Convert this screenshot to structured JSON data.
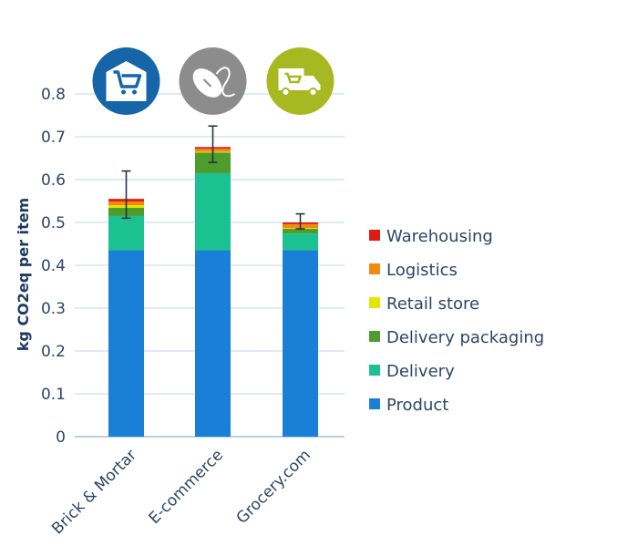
{
  "chart_data": {
    "type": "bar",
    "stacked": true,
    "title": "",
    "xlabel": "",
    "ylabel": "kg CO2eq per item",
    "ylim": [
      0,
      0.8
    ],
    "yticks": [
      "0",
      "0.1",
      "0.2",
      "0.3",
      "0.4",
      "0.5",
      "0.6",
      "0.7",
      "0.8"
    ],
    "grid": true,
    "legend_position": "right",
    "categories": [
      "Brick & Mortar",
      "E-commerce",
      "Grocery.com"
    ],
    "category_icons": [
      "store-cart-icon",
      "computer-mouse-icon",
      "delivery-truck-icon"
    ],
    "icon_colors": [
      "#1565a8",
      "#8c8c8c",
      "#a8b820"
    ],
    "series": [
      {
        "name": "Product",
        "color": "#1a7fd6",
        "values": [
          0.435,
          0.435,
          0.435
        ]
      },
      {
        "name": "Delivery",
        "color": "#1cc191",
        "values": [
          0.08,
          0.18,
          0.039
        ]
      },
      {
        "name": "Delivery packaging",
        "color": "#4e9c2c",
        "values": [
          0.019,
          0.048,
          0.011
        ]
      },
      {
        "name": "Retail store",
        "color": "#e2e600",
        "values": [
          0.006,
          0.002,
          0.002
        ]
      },
      {
        "name": "Logistics",
        "color": "#f08a10",
        "values": [
          0.009,
          0.007,
          0.009
        ]
      },
      {
        "name": "Warehousing",
        "color": "#e01b14",
        "values": [
          0.006,
          0.004,
          0.004
        ]
      }
    ],
    "error_bars": [
      {
        "low": 0.51,
        "high": 0.62
      },
      {
        "low": 0.64,
        "high": 0.725
      },
      {
        "low": 0.485,
        "high": 0.52
      }
    ]
  }
}
